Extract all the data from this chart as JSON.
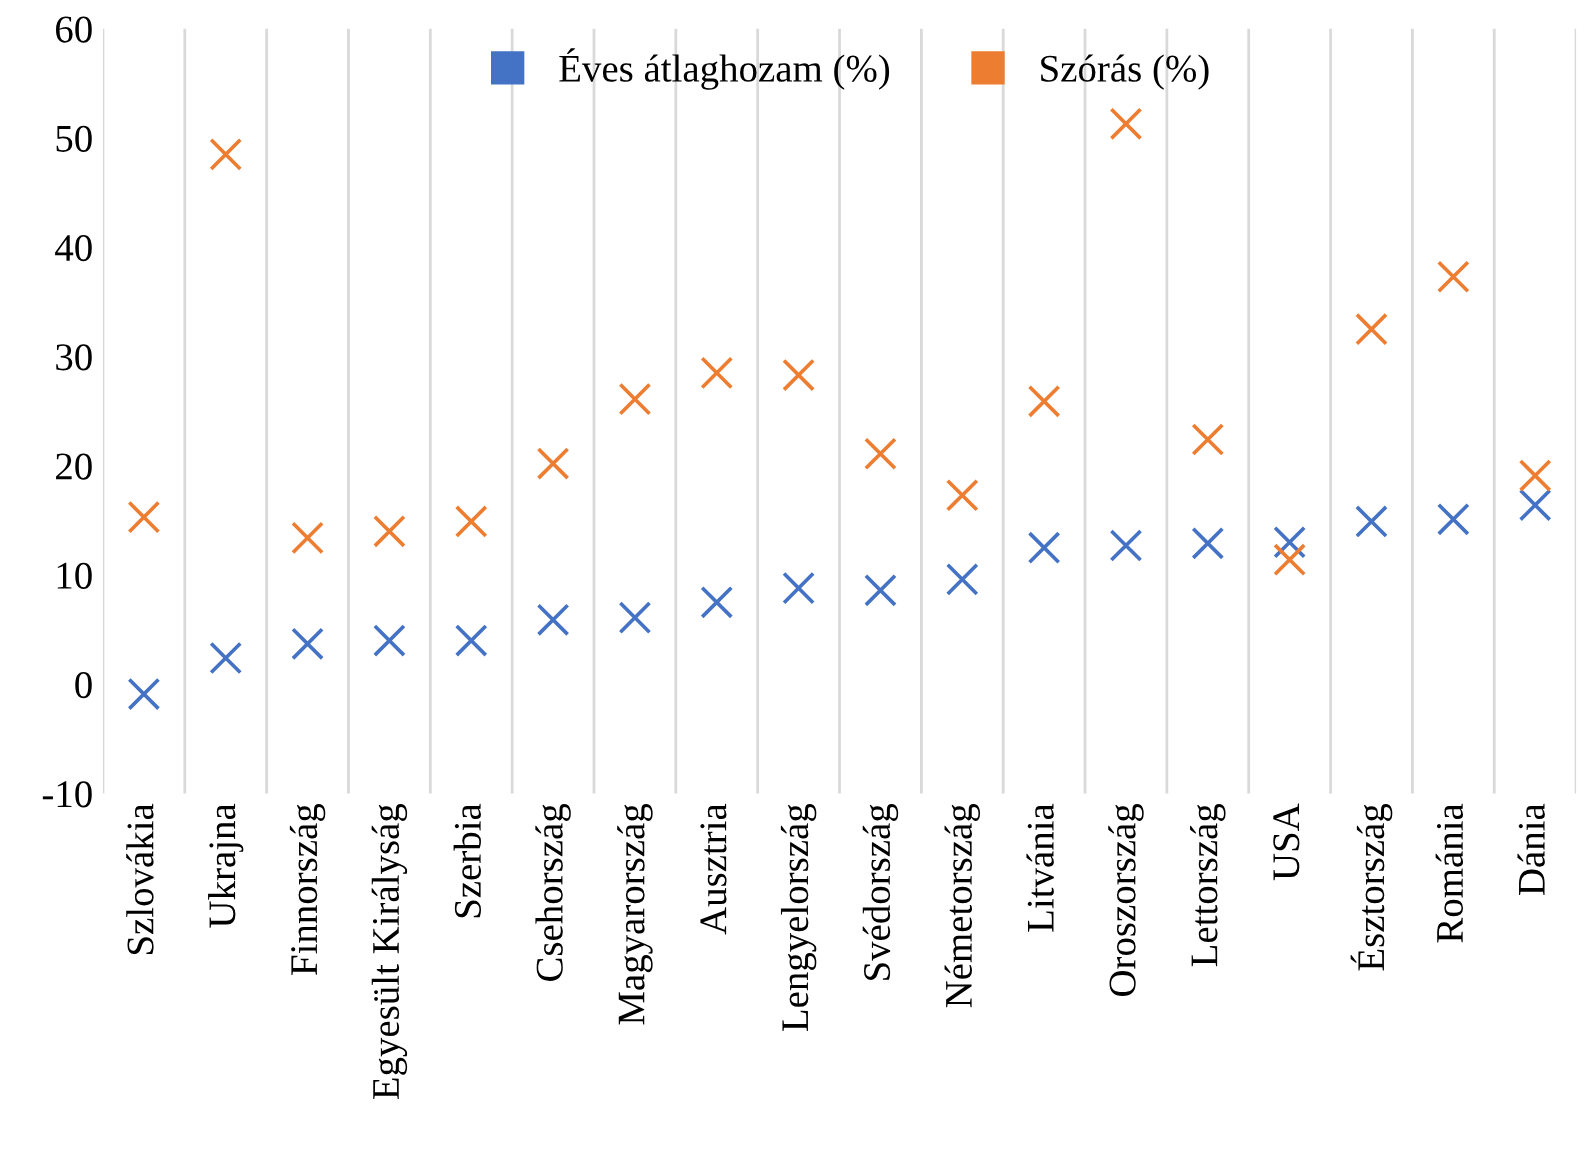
{
  "chart_data": {
    "type": "scatter",
    "categories": [
      "Szlovákia",
      "Ukrajna",
      "Finnország",
      "Egyesült Királyság",
      "Szerbia",
      "Csehország",
      "Magyarország",
      "Ausztria",
      "Lengyelország",
      "Svédország",
      "Németország",
      "Litvánia",
      "Oroszország",
      "Lettország",
      "USA",
      "Észtország",
      "Románia",
      "Dánia"
    ],
    "series": [
      {
        "name": "Éves átlaghozam (%)",
        "color": "#4472c4",
        "values": [
          -0.9,
          2.4,
          3.7,
          4.0,
          4.0,
          5.9,
          6.1,
          7.5,
          8.8,
          8.6,
          9.6,
          12.5,
          12.7,
          12.9,
          13.0,
          14.9,
          15.1,
          16.4
        ]
      },
      {
        "name": "Szórás (%)",
        "color": "#ed7d31",
        "values": [
          15.3,
          48.5,
          13.4,
          14.0,
          14.9,
          20.2,
          26.1,
          28.5,
          28.3,
          21.1,
          17.3,
          25.9,
          51.3,
          22.4,
          11.4,
          32.5,
          37.3,
          19.1
        ]
      }
    ],
    "ylim": [
      -10,
      60
    ],
    "yticks": [
      -10,
      0,
      10,
      20,
      30,
      40,
      50,
      60
    ],
    "grid": "x",
    "legend": "top",
    "marker": "cross"
  }
}
